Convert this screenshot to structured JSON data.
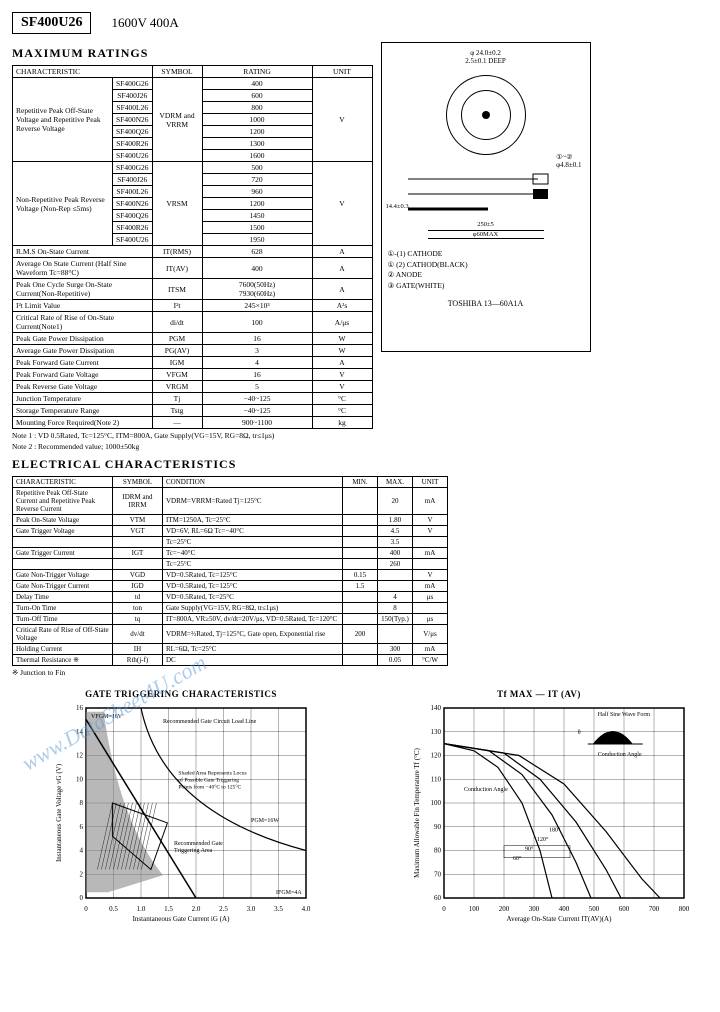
{
  "header": {
    "part": "SF400U26",
    "spec": "1600V   400A"
  },
  "sections": {
    "max_ratings": "MAXIMUM RATINGS",
    "elec_char": "ELECTRICAL CHARACTERISTICS",
    "gate_trig": "GATE TRIGGERING CHARACTERISTICS"
  },
  "max_table": {
    "headers": {
      "char": "CHARACTERISTIC",
      "sym": "SYMBOL",
      "rat": "RATING",
      "unit": "UNIT"
    },
    "group1_char": "Repetitive Peak Off-State Voltage and Repetitive Peak Reverse Voltage",
    "group1_sym": "VDRM and VRRM",
    "group1_unit": "V",
    "parts1": [
      "SF400G26",
      "SF400J26",
      "SF400L26",
      "SF400N26",
      "SF400Q26",
      "SF400R26",
      "SF400U26"
    ],
    "vals1": [
      "400",
      "600",
      "800",
      "1000",
      "1200",
      "1300",
      "1600"
    ],
    "group2_char": "Non-Repetitive Peak Reverse Voltage (Non-Rep ≤5ms)",
    "group2_sym": "VRSM",
    "group2_unit": "V",
    "parts2": [
      "SF400G26",
      "SF400J26",
      "SF400L26",
      "SF400N26",
      "SF400Q26",
      "SF400R26",
      "SF400U26"
    ],
    "vals2": [
      "500",
      "720",
      "960",
      "1200",
      "1450",
      "1500",
      "1950"
    ],
    "rows": [
      {
        "c": "R.M.S On-State Current",
        "s": "IT(RMS)",
        "r": "628",
        "u": "A"
      },
      {
        "c": "Average On State Current (Half Sine Waveform Tc=88°C)",
        "s": "IT(AV)",
        "r": "400",
        "u": "A"
      },
      {
        "c": "Peak One Cycle Surge On-State Current(Non-Repetitive)",
        "s": "ITSM",
        "r": "7600(50Hz)\n7930(60Hz)",
        "u": "A"
      },
      {
        "c": "I²t Limit Value",
        "s": "I²t",
        "r": "245×10³",
        "u": "A²s"
      },
      {
        "c": "Critical Rate of Rise of On-State Current(Note1)",
        "s": "di/dt",
        "r": "100",
        "u": "A/μs"
      },
      {
        "c": "Peak Gate Power Dissipation",
        "s": "PGM",
        "r": "16",
        "u": "W"
      },
      {
        "c": "Average Gate Power Dissipation",
        "s": "PG(AV)",
        "r": "3",
        "u": "W"
      },
      {
        "c": "Peak Forward Gate Current",
        "s": "IGM",
        "r": "4",
        "u": "A"
      },
      {
        "c": "Peak Forward Gate Voltage",
        "s": "VFGM",
        "r": "16",
        "u": "V"
      },
      {
        "c": "Peak Reverse Gate Voltage",
        "s": "VRGM",
        "r": "5",
        "u": "V"
      },
      {
        "c": "Junction Temperature",
        "s": "Tj",
        "r": "−40~125",
        "u": "°C"
      },
      {
        "c": "Storage Temperature Range",
        "s": "Tstg",
        "r": "−40~125",
        "u": "°C"
      },
      {
        "c": "Mounting Force Required(Note 2)",
        "s": "—",
        "r": "900~1100",
        "u": "kg"
      }
    ]
  },
  "notes": {
    "n1": "Note 1 : VD 0.5Rated, Tc=125°C, ITM=800A, Gate Supply(VG=15V, RG=8Ω, tr≤1μs)",
    "n2": "Note 2 : Recommended value; 1000±50kg"
  },
  "package": {
    "dim1": "φ 24.0±0.2",
    "dim2": "2.5±0.1 DEEP",
    "dim3": "①~②",
    "dim4": "φ4.8±0.1",
    "dim5": "250±5",
    "dim6": "14.4±0.3",
    "dim7": "φ60MAX",
    "pins": [
      "①-(1) CATHODE",
      "① (2) CATHOD(BLACK)",
      "②   ANODE",
      "③   GATE(WHITE)"
    ],
    "mfr": "TOSHIBA  13—60A1A"
  },
  "elec_table": {
    "headers": {
      "char": "CHARACTERISTIC",
      "sym": "SYMBOL",
      "cond": "CONDITION",
      "min": "MIN.",
      "max": "MAX.",
      "unit": "UNIT"
    },
    "rows": [
      {
        "c": "Repetitive Peak Off-State Current and Repetitive Peak Reverse Current",
        "s": "IDRM and IRRM",
        "d": "VDRM=VRRM=Rated  Tj=125°C",
        "mn": "",
        "mx": "20",
        "u": "mA"
      },
      {
        "c": "Peak On-State Voltage",
        "s": "VTM",
        "d": "ITM=1250A,  Tc=25°C",
        "mn": "",
        "mx": "1.80",
        "u": "V"
      },
      {
        "c": "Gate Trigger Voltage",
        "s": "VGT",
        "d": "VD=6V,  RL=6Ω   Tc=−40°C",
        "mn": "",
        "mx": "4.5",
        "u": "V"
      },
      {
        "c": "",
        "s": "",
        "d": "                        Tc=25°C",
        "mn": "",
        "mx": "3.5",
        "u": ""
      },
      {
        "c": "Gate Trigger Current",
        "s": "IGT",
        "d": "                        Tc=−40°C",
        "mn": "",
        "mx": "400",
        "u": "mA"
      },
      {
        "c": "",
        "s": "",
        "d": "                        Tc=25°C",
        "mn": "",
        "mx": "260",
        "u": ""
      },
      {
        "c": "Gate Non-Trigger Voltage",
        "s": "VGD",
        "d": "VD=0.5Rated, Tc=125°C",
        "mn": "0.15",
        "mx": "",
        "u": "V"
      },
      {
        "c": "Gate Non-Trigger Current",
        "s": "IGD",
        "d": "VD=0.5Rated, Tc=125°C",
        "mn": "1.5",
        "mx": "",
        "u": "mA"
      },
      {
        "c": "Delay Time",
        "s": "td",
        "d": "VD=0.5Rated, Tc=25°C",
        "mn": "",
        "mx": "4",
        "u": "μs"
      },
      {
        "c": "Turn-On Time",
        "s": "ton",
        "d": "Gate Supply(VG=15V, RG=8Ω, tr≤1μs)",
        "mn": "",
        "mx": "8",
        "u": ""
      },
      {
        "c": "Turn-Off Time",
        "s": "tq",
        "d": "IT=800A, VR≥50V, dv/dt=20V/μs, VD=0.5Rated, Tc=120°C",
        "mn": "",
        "mx": "150(Typ.)",
        "u": "μs"
      },
      {
        "c": "Critical Rate of Rise of Off-State Voltage",
        "s": "dv/dt",
        "d": "VDRM=⅔Rated, Tj=125°C, Gate open, Exponential rise",
        "mn": "200",
        "mx": "",
        "u": "V/μs"
      },
      {
        "c": "Holding Current",
        "s": "IH",
        "d": "RL=6Ω,   Tc=25°C",
        "mn": "",
        "mx": "300",
        "u": "mA"
      },
      {
        "c": "Thermal Resistance ※",
        "s": "Rth(j-f)",
        "d": "DC",
        "mn": "",
        "mx": "0.05",
        "u": "°C/W"
      }
    ],
    "footnote": "※ Junction to Fin"
  },
  "chart1": {
    "title": "GATE TRIGGERING CHARACTERISTICS",
    "ylabel": "Instantaneous Gate Voltage vG (V)",
    "xlabel": "Instantaneous Gate Current iG (A)",
    "xticks": [
      "0",
      "0.5",
      "1.0",
      "1.5",
      "2.0",
      "2.5",
      "3.0",
      "3.5",
      "4.0"
    ],
    "yticks": [
      "0",
      "2",
      "4",
      "6",
      "8",
      "10",
      "12",
      "14",
      "16"
    ],
    "anno1": "VFGM=16V",
    "anno2": "Recommended Gate Circuit Load Line",
    "anno3": "Shaded Area Represents Locus of Possible Gate Triggering Points from −40°C to 125°C",
    "anno4": "Recommended Gate Triggering Area",
    "anno5": "PGM=16W",
    "anno6": "IFGM=4A",
    "colors": {
      "grid": "#000",
      "fill": "#666",
      "hatch": "#333",
      "bg": "#ffffff"
    }
  },
  "chart2": {
    "title": "Tf MAX — IT (AV)",
    "ylabel": "Maximum Allowable Fin Temperature Tf (°C)",
    "xlabel": "Average On-State Current IT(AV)(A)",
    "xticks": [
      "0",
      "100",
      "200",
      "300",
      "400",
      "500",
      "600",
      "700",
      "800"
    ],
    "yticks": [
      "60",
      "70",
      "80",
      "90",
      "100",
      "110",
      "120",
      "130",
      "140"
    ],
    "anno1": "Half Sine Wave Form",
    "anno2": "Conduction Angle",
    "anno3": "Conduction Angle",
    "legend": [
      "60°",
      "90°",
      "120°",
      "180°"
    ],
    "colors": {
      "grid": "#000",
      "line": "#000",
      "bg": "#ffffff"
    }
  },
  "watermark": "www.DataSheet4U.com"
}
